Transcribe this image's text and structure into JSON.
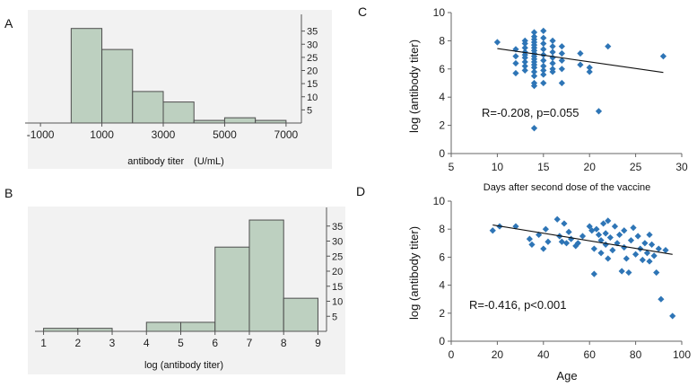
{
  "chart_data": [
    {
      "panel": "A",
      "type": "bar",
      "subtype": "histogram",
      "xlabel": "antibody titer　(U/mL)",
      "x_ticks": [
        "-1000",
        "1000",
        "3000",
        "5000",
        "7000"
      ],
      "y_ticks": [
        "5",
        "10",
        "15",
        "20",
        "25",
        "30",
        "35"
      ],
      "xlim": [
        -1500,
        7500
      ],
      "ylim": [
        0,
        40
      ],
      "bins": [
        {
          "start": 0,
          "end": 1000,
          "count": 36
        },
        {
          "start": 1000,
          "end": 2000,
          "count": 28
        },
        {
          "start": 2000,
          "end": 3000,
          "count": 12
        },
        {
          "start": 3000,
          "end": 4000,
          "count": 8
        },
        {
          "start": 4000,
          "end": 5000,
          "count": 1
        },
        {
          "start": 5000,
          "end": 6000,
          "count": 2
        },
        {
          "start": 6000,
          "end": 7000,
          "count": 1
        }
      ],
      "grid": false,
      "bar_color": "#bdd0c0",
      "panel_color": "#f2f2f2"
    },
    {
      "panel": "B",
      "type": "bar",
      "subtype": "histogram",
      "xlabel": "log (antibody titer)",
      "x_ticks": [
        "1",
        "2",
        "3",
        "4",
        "5",
        "6",
        "7",
        "8",
        "9"
      ],
      "y_ticks": [
        "5",
        "10",
        "15",
        "20",
        "25",
        "30",
        "35"
      ],
      "xlim": [
        0.75,
        9.25
      ],
      "ylim": [
        0,
        40
      ],
      "bins": [
        {
          "start": 1,
          "end": 2,
          "count": 1
        },
        {
          "start": 2,
          "end": 3,
          "count": 1
        },
        {
          "start": 3,
          "end": 4,
          "count": 0
        },
        {
          "start": 4,
          "end": 5,
          "count": 3
        },
        {
          "start": 5,
          "end": 6,
          "count": 3
        },
        {
          "start": 6,
          "end": 7,
          "count": 28
        },
        {
          "start": 7,
          "end": 8,
          "count": 37
        },
        {
          "start": 8,
          "end": 9,
          "count": 11
        }
      ],
      "grid": false,
      "bar_color": "#bdd0c0",
      "panel_color": "#f2f2f2"
    },
    {
      "panel": "C",
      "type": "scatter",
      "xlabel": "Days after second dose of the vaccine",
      "ylabel": "log (antibody titer)",
      "x_ticks": [
        "5",
        "10",
        "15",
        "20",
        "25",
        "30"
      ],
      "y_ticks": [
        "0",
        "2",
        "4",
        "6",
        "8",
        "10"
      ],
      "xlim": [
        5,
        30
      ],
      "ylim": [
        0,
        10
      ],
      "annotation": "R=-0.208, p=0.055",
      "trendline": [
        [
          10,
          7.45
        ],
        [
          28,
          5.75
        ]
      ],
      "grid": false,
      "marker_color": "#2e75b6",
      "points": [
        [
          10,
          7.9
        ],
        [
          12,
          7.4
        ],
        [
          12,
          6.9
        ],
        [
          12,
          6.4
        ],
        [
          12,
          5.7
        ],
        [
          13,
          8.0
        ],
        [
          13,
          7.8
        ],
        [
          13,
          7.5
        ],
        [
          13,
          7.2
        ],
        [
          13,
          7.0
        ],
        [
          13,
          6.8
        ],
        [
          13,
          6.5
        ],
        [
          13,
          6.2
        ],
        [
          13,
          5.9
        ],
        [
          14,
          8.6
        ],
        [
          14,
          8.3
        ],
        [
          14,
          8.1
        ],
        [
          14,
          7.9
        ],
        [
          14,
          7.7
        ],
        [
          14,
          7.5
        ],
        [
          14,
          7.3
        ],
        [
          14,
          7.1
        ],
        [
          14,
          6.9
        ],
        [
          14,
          6.7
        ],
        [
          14,
          6.5
        ],
        [
          14,
          6.3
        ],
        [
          14,
          6.1
        ],
        [
          14,
          5.8
        ],
        [
          14,
          5.5
        ],
        [
          14,
          5.0
        ],
        [
          14,
          4.8
        ],
        [
          14,
          1.8
        ],
        [
          15,
          8.7
        ],
        [
          15,
          8.2
        ],
        [
          15,
          7.8
        ],
        [
          15,
          7.4
        ],
        [
          15,
          7.0
        ],
        [
          15,
          6.6
        ],
        [
          15,
          6.2
        ],
        [
          15,
          5.9
        ],
        [
          15,
          5.6
        ],
        [
          15,
          5.0
        ],
        [
          16,
          8.0
        ],
        [
          16,
          7.6
        ],
        [
          16,
          7.2
        ],
        [
          16,
          6.8
        ],
        [
          16,
          6.4
        ],
        [
          16,
          6.0
        ],
        [
          16,
          5.8
        ],
        [
          17,
          7.6
        ],
        [
          17,
          7.1
        ],
        [
          17,
          6.6
        ],
        [
          17,
          6.0
        ],
        [
          17,
          5.0
        ],
        [
          19,
          7.1
        ],
        [
          19,
          6.3
        ],
        [
          20,
          6.1
        ],
        [
          20,
          5.8
        ],
        [
          21,
          3.0
        ],
        [
          22,
          7.6
        ],
        [
          28,
          6.9
        ]
      ]
    },
    {
      "panel": "D",
      "type": "scatter",
      "xlabel": "Age",
      "ylabel": "log (antibody titer)",
      "x_ticks": [
        "0",
        "20",
        "40",
        "60",
        "80",
        "100"
      ],
      "y_ticks": [
        "0",
        "2",
        "4",
        "6",
        "8",
        "10"
      ],
      "xlim": [
        0,
        100
      ],
      "ylim": [
        0,
        10
      ],
      "annotation": "R=-0.416, p<0.001",
      "trendline": [
        [
          18,
          8.3
        ],
        [
          96,
          6.2
        ]
      ],
      "grid": false,
      "marker_color": "#2e75b6",
      "points": [
        [
          18,
          7.9
        ],
        [
          21,
          8.2
        ],
        [
          28,
          8.2
        ],
        [
          34,
          7.3
        ],
        [
          35,
          6.9
        ],
        [
          38,
          7.6
        ],
        [
          40,
          6.6
        ],
        [
          41,
          8.0
        ],
        [
          42,
          7.1
        ],
        [
          46,
          8.7
        ],
        [
          47,
          7.5
        ],
        [
          48,
          7.1
        ],
        [
          49,
          8.4
        ],
        [
          50,
          7.0
        ],
        [
          51,
          7.8
        ],
        [
          52,
          7.3
        ],
        [
          54,
          6.8
        ],
        [
          55,
          7.0
        ],
        [
          57,
          7.5
        ],
        [
          60,
          8.2
        ],
        [
          61,
          7.9
        ],
        [
          62,
          4.8
        ],
        [
          62,
          6.6
        ],
        [
          63,
          8.0
        ],
        [
          64,
          7.6
        ],
        [
          65,
          7.2
        ],
        [
          65,
          6.3
        ],
        [
          66,
          8.4
        ],
        [
          67,
          7.7
        ],
        [
          67,
          6.9
        ],
        [
          68,
          8.6
        ],
        [
          68,
          5.9
        ],
        [
          69,
          7.4
        ],
        [
          70,
          6.5
        ],
        [
          71,
          8.2
        ],
        [
          72,
          7.0
        ],
        [
          73,
          7.6
        ],
        [
          74,
          5.0
        ],
        [
          75,
          6.7
        ],
        [
          75,
          7.9
        ],
        [
          76,
          5.9
        ],
        [
          77,
          4.9
        ],
        [
          78,
          7.2
        ],
        [
          79,
          8.1
        ],
        [
          80,
          6.2
        ],
        [
          81,
          7.5
        ],
        [
          82,
          6.6
        ],
        [
          83,
          5.8
        ],
        [
          84,
          7.0
        ],
        [
          85,
          6.3
        ],
        [
          86,
          7.6
        ],
        [
          86,
          5.7
        ],
        [
          87,
          6.9
        ],
        [
          88,
          6.1
        ],
        [
          89,
          4.9
        ],
        [
          90,
          6.6
        ],
        [
          91,
          3.0
        ],
        [
          93,
          6.5
        ],
        [
          96,
          1.8
        ]
      ]
    }
  ]
}
